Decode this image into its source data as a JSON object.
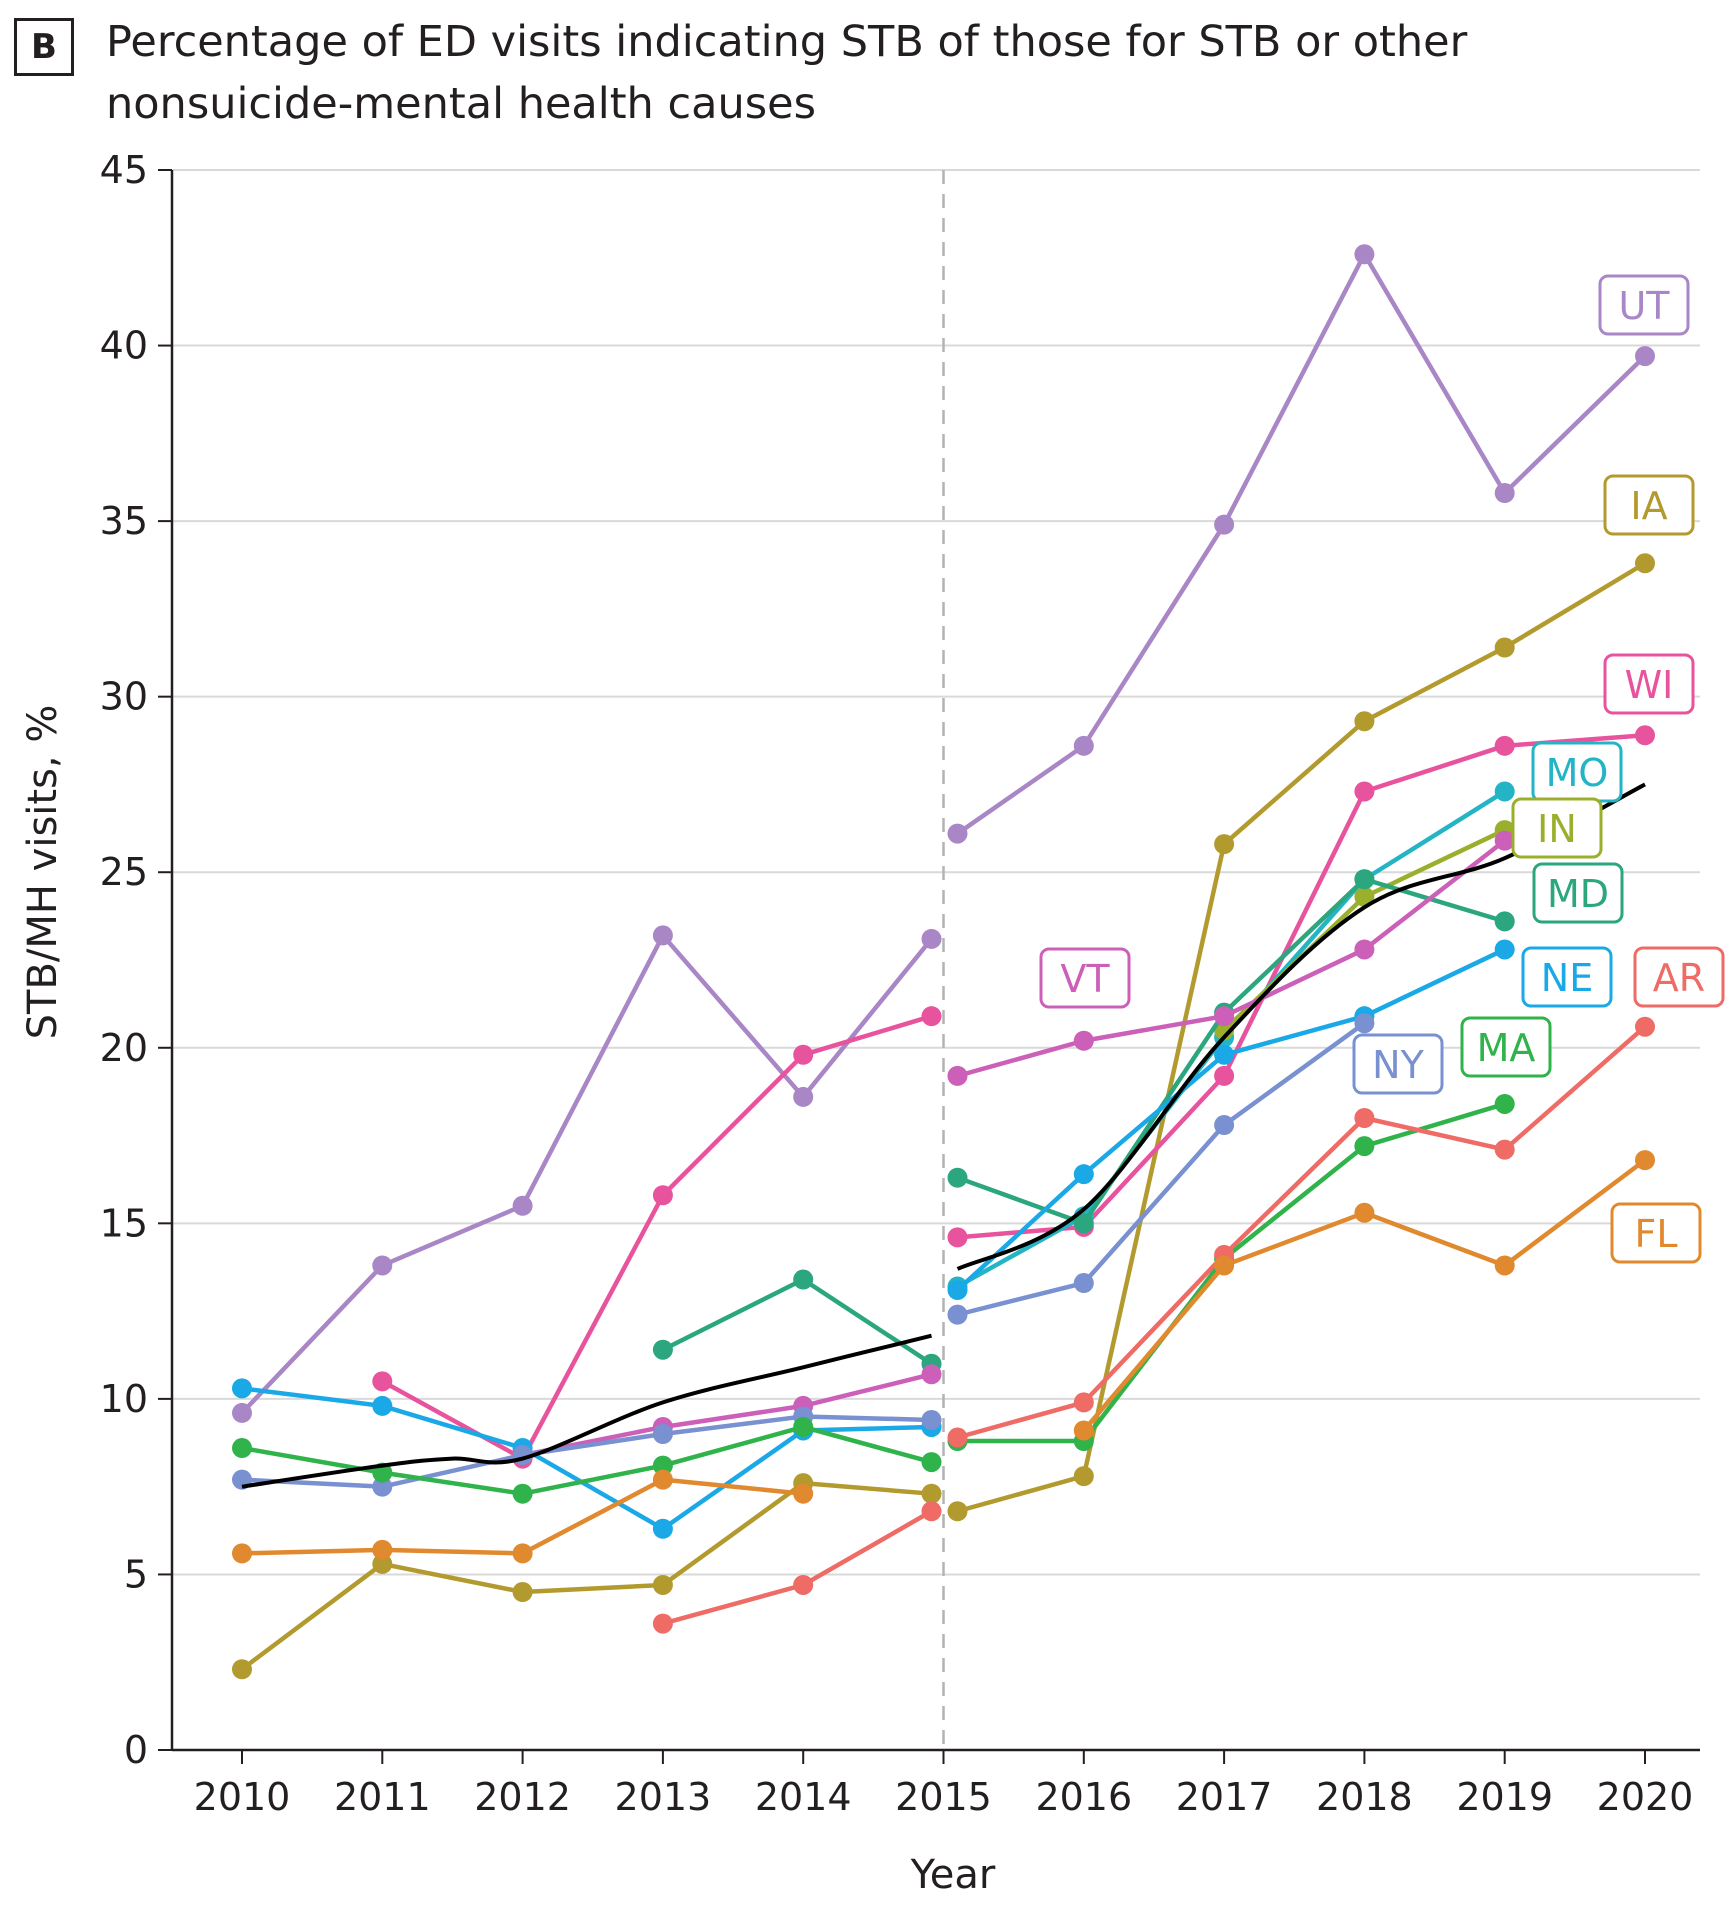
{
  "panel_label": "B",
  "title_lines": [
    "Percentage of ED visits indicating STB of those for STB or other",
    "nonsuicide-mental health causes"
  ],
  "chart_data": {
    "type": "line",
    "title": "Percentage of ED visits indicating STB of those for STB or other nonsuicide-mental health causes",
    "xlabel": "Year",
    "ylabel": "STB/MH visits, %",
    "ylim": [
      0,
      45
    ],
    "yticks": [
      0,
      5,
      10,
      15,
      20,
      25,
      30,
      35,
      40,
      45
    ],
    "xticks": [
      2010,
      2011,
      2012,
      2013,
      2014,
      2015,
      2016,
      2017,
      2018,
      2019,
      2020
    ],
    "xlim": [
      2009.5,
      2020.4
    ],
    "grid": "horizontal",
    "break_year": 2015,
    "series": [
      {
        "name": "UT",
        "color": "#a986c6",
        "pre": [
          [
            2010,
            9.6
          ],
          [
            2011,
            13.8
          ],
          [
            2012,
            15.5
          ],
          [
            2013,
            23.2
          ],
          [
            2014,
            18.6
          ],
          [
            2015,
            23.1
          ]
        ],
        "post": [
          [
            2015,
            26.1
          ],
          [
            2016,
            28.6
          ],
          [
            2017,
            34.9
          ],
          [
            2018,
            42.6
          ],
          [
            2019,
            35.8
          ],
          [
            2020,
            39.7
          ]
        ]
      },
      {
        "name": "IA",
        "color": "#b39a2f",
        "pre": [
          [
            2010,
            2.3
          ],
          [
            2011,
            5.3
          ],
          [
            2012,
            4.5
          ],
          [
            2013,
            4.7
          ],
          [
            2014,
            7.6
          ],
          [
            2015,
            7.3
          ]
        ],
        "post": [
          [
            2015,
            6.8
          ],
          [
            2016,
            7.8
          ],
          [
            2017,
            25.8
          ],
          [
            2018,
            29.3
          ],
          [
            2019,
            31.4
          ],
          [
            2020,
            33.8
          ]
        ]
      },
      {
        "name": "WI",
        "color": "#e8539e",
        "pre": [
          [
            2011,
            10.5
          ],
          [
            2012,
            8.3
          ],
          [
            2013,
            15.8
          ],
          [
            2014,
            19.8
          ],
          [
            2015,
            20.9
          ]
        ],
        "post": [
          [
            2015,
            14.6
          ],
          [
            2016,
            14.9
          ],
          [
            2017,
            19.2
          ],
          [
            2018,
            27.3
          ],
          [
            2019,
            28.6
          ],
          [
            2020,
            28.9
          ]
        ]
      },
      {
        "name": "MO",
        "color": "#23b5c6",
        "pre": [
          [
            2015,
            9.2
          ]
        ],
        "post": [
          [
            2015,
            13.2
          ],
          [
            2016,
            15.2
          ],
          [
            2017,
            20.3
          ],
          [
            2018,
            24.8
          ],
          [
            2019,
            27.3
          ]
        ]
      },
      {
        "name": "IN",
        "color": "#9aaf2c",
        "pre": [],
        "post": [
          [
            2017,
            20.5
          ],
          [
            2018,
            24.3
          ],
          [
            2019,
            26.2
          ]
        ]
      },
      {
        "name": "MD",
        "color": "#2ba67f",
        "pre": [
          [
            2013,
            11.4
          ],
          [
            2014,
            13.4
          ],
          [
            2015,
            11.0
          ]
        ],
        "post": [
          [
            2015,
            16.3
          ],
          [
            2016,
            15.0
          ],
          [
            2017,
            21.0
          ],
          [
            2018,
            24.8
          ],
          [
            2019,
            23.6
          ]
        ]
      },
      {
        "name": "NE",
        "color": "#1aa9e6",
        "pre": [
          [
            2010,
            10.3
          ],
          [
            2011,
            9.8
          ],
          [
            2012,
            8.6
          ],
          [
            2013,
            6.3
          ],
          [
            2014,
            9.1
          ],
          [
            2015,
            9.2
          ]
        ],
        "post": [
          [
            2015,
            13.1
          ],
          [
            2016,
            16.4
          ],
          [
            2017,
            19.8
          ],
          [
            2018,
            20.9
          ],
          [
            2019,
            22.8
          ]
        ]
      },
      {
        "name": "VT",
        "color": "#cc5fb8",
        "pre": [
          [
            2012,
            8.4
          ],
          [
            2013,
            9.2
          ],
          [
            2014,
            9.8
          ],
          [
            2015,
            10.7
          ]
        ],
        "post": [
          [
            2015,
            19.2
          ],
          [
            2016,
            20.2
          ],
          [
            2017,
            20.9
          ],
          [
            2018,
            22.8
          ],
          [
            2019,
            25.9
          ]
        ]
      },
      {
        "name": "NY",
        "color": "#7990d1",
        "pre": [
          [
            2010,
            7.7
          ],
          [
            2011,
            7.5
          ],
          [
            2012,
            8.4
          ],
          [
            2013,
            9.0
          ],
          [
            2014,
            9.5
          ],
          [
            2015,
            9.4
          ]
        ],
        "post": [
          [
            2015,
            12.4
          ],
          [
            2016,
            13.3
          ],
          [
            2017,
            17.8
          ],
          [
            2018,
            20.7
          ]
        ]
      },
      {
        "name": "MA",
        "color": "#2fb34a",
        "pre": [
          [
            2010,
            8.6
          ],
          [
            2011,
            7.9
          ],
          [
            2012,
            7.3
          ],
          [
            2013,
            8.1
          ],
          [
            2014,
            9.2
          ],
          [
            2015,
            8.2
          ]
        ],
        "post": [
          [
            2015,
            8.8
          ],
          [
            2016,
            8.8
          ],
          [
            2017,
            14.0
          ],
          [
            2018,
            17.2
          ],
          [
            2019,
            18.4
          ]
        ]
      },
      {
        "name": "AR",
        "color": "#ee6b66",
        "pre": [
          [
            2013,
            3.6
          ],
          [
            2014,
            4.7
          ],
          [
            2015,
            6.8
          ]
        ],
        "post": [
          [
            2015,
            8.9
          ],
          [
            2016,
            9.9
          ],
          [
            2017,
            14.1
          ],
          [
            2018,
            18.0
          ],
          [
            2019,
            17.1
          ],
          [
            2020,
            20.6
          ]
        ]
      },
      {
        "name": "FL",
        "color": "#e0892e",
        "pre": [
          [
            2010,
            5.6
          ],
          [
            2011,
            5.7
          ],
          [
            2012,
            5.6
          ],
          [
            2013,
            7.7
          ],
          [
            2014,
            7.3
          ]
        ],
        "post": [
          [
            2016,
            9.1
          ],
          [
            2017,
            13.8
          ],
          [
            2018,
            15.3
          ],
          [
            2019,
            13.8
          ],
          [
            2020,
            16.8
          ]
        ]
      }
    ],
    "trend": {
      "color": "#000000",
      "pre": [
        [
          2010,
          7.5
        ],
        [
          2011,
          8.1
        ],
        [
          2011.5,
          8.3
        ],
        [
          2012,
          8.3
        ],
        [
          2013,
          9.9
        ],
        [
          2014,
          10.9
        ],
        [
          2015,
          11.8
        ]
      ],
      "post": [
        [
          2015.1,
          13.7
        ],
        [
          2016,
          15.4
        ],
        [
          2017,
          20.3
        ],
        [
          2018,
          24.0
        ],
        [
          2019,
          25.4
        ],
        [
          2020,
          27.5
        ]
      ]
    },
    "labels": [
      {
        "text": "UT",
        "series": "UT"
      },
      {
        "text": "IA",
        "series": "IA"
      },
      {
        "text": "WI",
        "series": "WI"
      },
      {
        "text": "MO",
        "series": "MO"
      },
      {
        "text": "IN",
        "series": "IN"
      },
      {
        "text": "MD",
        "series": "MD"
      },
      {
        "text": "VT",
        "series": "VT"
      },
      {
        "text": "NE",
        "series": "NE"
      },
      {
        "text": "AR",
        "series": "AR"
      },
      {
        "text": "NY",
        "series": "NY"
      },
      {
        "text": "MA",
        "series": "MA"
      },
      {
        "text": "FL",
        "series": "FL"
      }
    ]
  }
}
